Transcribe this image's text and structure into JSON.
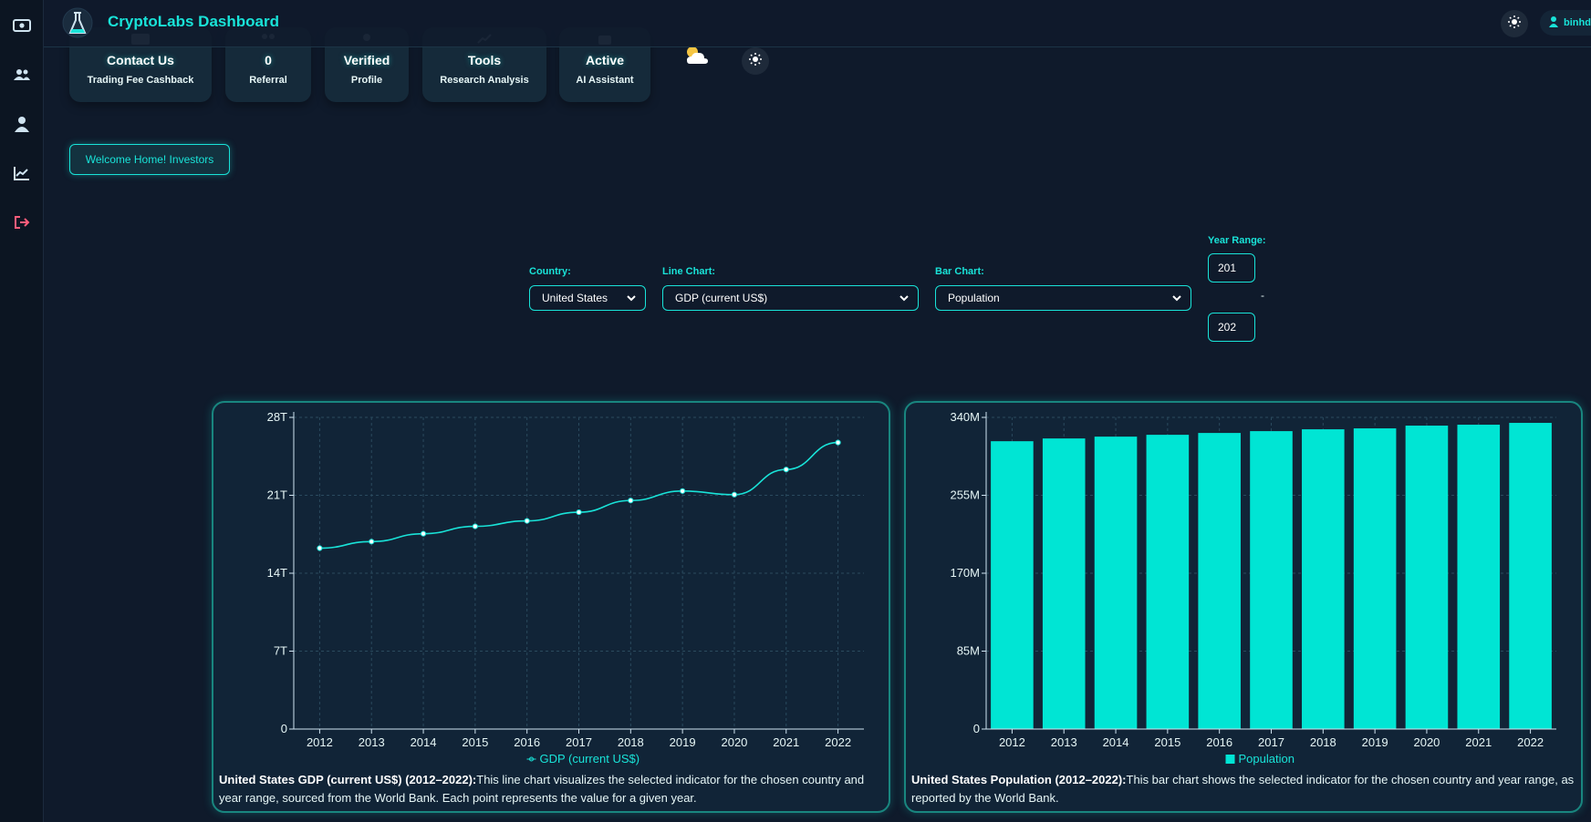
{
  "app": {
    "title": "CryptoLabs Dashboard"
  },
  "user": {
    "name": "binhdu"
  },
  "sidebar": {
    "items": [
      {
        "name": "money-icon"
      },
      {
        "name": "users-icon"
      },
      {
        "name": "user-icon"
      },
      {
        "name": "chart-line-icon"
      },
      {
        "name": "logout-icon",
        "color": "#ff5c7a"
      }
    ]
  },
  "cards": [
    {
      "value": "Contact Us",
      "label": "Trading Fee Cashback",
      "icon": "money-icon"
    },
    {
      "value": "0",
      "label": "Referral",
      "icon": "users-icon"
    },
    {
      "value": "Verified",
      "label": "Profile",
      "icon": "user-icon"
    },
    {
      "value": "Tools",
      "label": "Research Analysis",
      "icon": "chart-line-icon"
    },
    {
      "value": "Active",
      "label": "AI Assistant",
      "icon": "robot-icon"
    }
  ],
  "welcome_label": "Welcome Home! Investors",
  "filters": {
    "country_label": "Country:",
    "country_value": "United States",
    "line_label": "Line Chart:",
    "line_value": "GDP (current US$)",
    "bar_label": "Bar Chart:",
    "bar_value": "Population",
    "year_label": "Year Range:",
    "year_start": "201",
    "year_end": "202",
    "year_sep": "-"
  },
  "line_panel": {
    "title": "United States GDP (current US$) (2012–2022):",
    "text": "This line chart visualizes the selected indicator for the chosen country and year range, sourced from the World Bank. Each point represents the value for a given year."
  },
  "bar_panel": {
    "title": "United States Population (2012–2022):",
    "text": "This bar chart shows the selected indicator for the chosen country and year range, as reported by the World Bank."
  },
  "colors": {
    "accent": "#19e3d8",
    "bar": "#00e5d4",
    "background": "#0f1a2b",
    "panel": "#112437"
  },
  "chart_data": [
    {
      "type": "line",
      "categories": [
        "2012",
        "2013",
        "2014",
        "2015",
        "2016",
        "2017",
        "2018",
        "2019",
        "2020",
        "2021",
        "2022"
      ],
      "series": [
        {
          "name": "GDP (current US$)",
          "values": [
            16.25,
            16.84,
            17.55,
            18.21,
            18.7,
            19.48,
            20.53,
            21.38,
            21.06,
            23.32,
            25.74
          ]
        }
      ],
      "unit": "T",
      "ylim": [
        0,
        28
      ],
      "yticks": [
        "0",
        "7T",
        "14T",
        "21T",
        "28T"
      ],
      "grid": true,
      "legend": "bottom"
    },
    {
      "type": "bar",
      "categories": [
        "2012",
        "2013",
        "2014",
        "2015",
        "2016",
        "2017",
        "2018",
        "2019",
        "2020",
        "2021",
        "2022"
      ],
      "series": [
        {
          "name": "Population",
          "values": [
            314,
            317,
            319,
            321,
            323,
            325,
            327,
            328,
            331,
            332,
            334
          ]
        }
      ],
      "unit": "M",
      "ylim": [
        0,
        340
      ],
      "yticks": [
        "0",
        "85M",
        "170M",
        "255M",
        "340M"
      ],
      "grid": true,
      "legend": "bottom"
    }
  ]
}
